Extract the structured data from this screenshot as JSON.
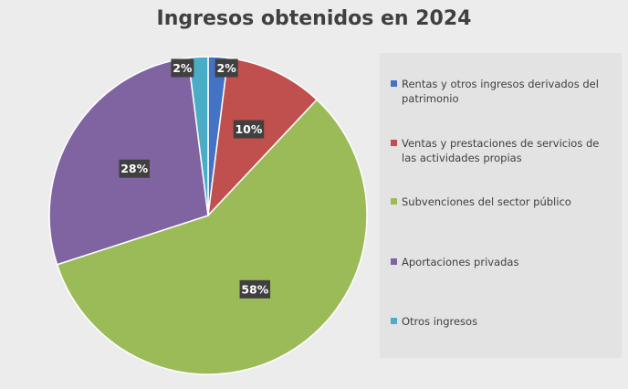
{
  "chart_data": {
    "type": "pie",
    "title": "Ingresos obtenidos en 2024",
    "series": [
      {
        "name": "Rentas y otros ingresos derivados del patrimonio",
        "value": 2,
        "label": "2%",
        "color": "#4472c4"
      },
      {
        "name": "Ventas y prestaciones de servicios de las actividades propias",
        "value": 10,
        "label": "10%",
        "color": "#c0504d"
      },
      {
        "name": "Subvenciones del sector público",
        "value": 58,
        "label": "58%",
        "color": "#9bbb59"
      },
      {
        "name": "Aportaciones privadas",
        "value": 28,
        "label": "28%",
        "color": "#8064a2"
      },
      {
        "name": "Otros ingresos",
        "value": 2,
        "label": "2%",
        "color": "#4bacc6"
      }
    ],
    "legend_position": "right"
  }
}
